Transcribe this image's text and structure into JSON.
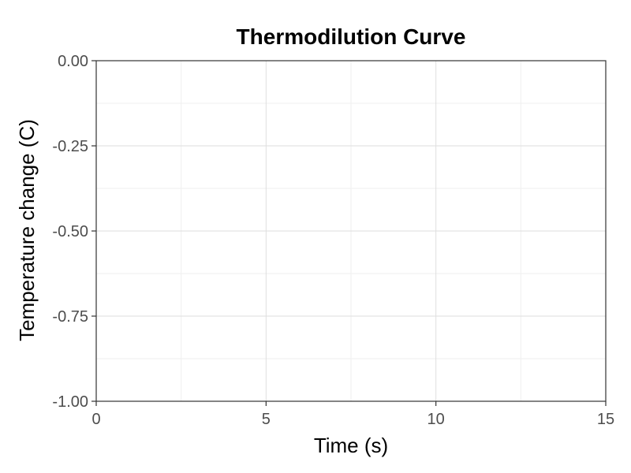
{
  "chart_data": {
    "type": "line",
    "title": "Thermodilution Curve",
    "xlabel": "Time (s)",
    "ylabel": "Temperature change (C)",
    "xlim": [
      0,
      15
    ],
    "ylim": [
      -1.0,
      0.0
    ],
    "x_ticks": [
      0,
      5,
      10,
      15
    ],
    "x_tick_labels": [
      "0",
      "5",
      "10",
      "15"
    ],
    "y_ticks": [
      0.0,
      -0.25,
      -0.5,
      -0.75,
      -1.0
    ],
    "y_tick_labels": [
      "0.00",
      "-0.25",
      "-0.50",
      "-0.75",
      "-1.00"
    ],
    "x_minor_ticks": [
      2.5,
      7.5,
      12.5
    ],
    "y_minor_ticks": [
      -0.125,
      -0.375,
      -0.625,
      -0.875
    ],
    "grid": true,
    "legend": "none",
    "series": [],
    "colors": {
      "grid_major": "#dedede",
      "grid_minor": "#efefef",
      "axis": "#333333",
      "tick_label": "#4d4d4d"
    }
  }
}
